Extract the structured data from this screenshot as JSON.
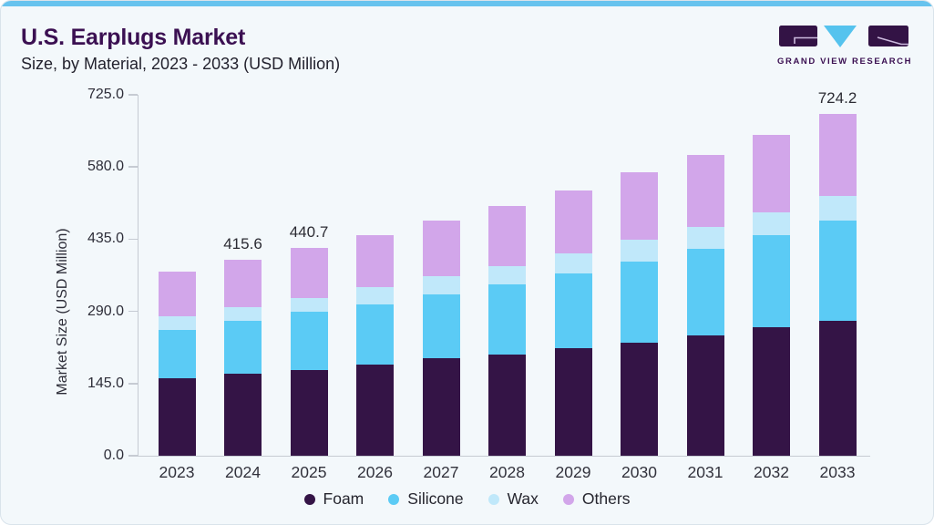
{
  "header": {
    "title": "U.S. Earplugs Market",
    "subtitle": "Size, by Material, 2023 - 2033 (USD Million)"
  },
  "logo": {
    "brand": "GRAND VIEW RESEARCH"
  },
  "colors": {
    "accent_bar": "#67c3ee",
    "card_background": "#f3f8fb",
    "title_text": "#3b1052",
    "axis_line": "#c6cbd3",
    "axis_text": "#2d2d38",
    "foam": "#341446",
    "silicone": "#5bcbf5",
    "wax": "#c0e8fa",
    "others": "#d2a6ea"
  },
  "chart_data": {
    "type": "bar",
    "stacked": true,
    "title": "U.S. Earplugs Market",
    "subtitle": "Size, by Material, 2023 - 2033 (USD Million)",
    "ylabel": "Market Size (USD Million)",
    "xlabel": "",
    "ylim": [
      0,
      725
    ],
    "yticks": [
      "0.0",
      "145.0",
      "290.0",
      "435.0",
      "580.0",
      "725.0"
    ],
    "grid": false,
    "legend_position": "bottom",
    "categories": [
      "2023",
      "2024",
      "2025",
      "2026",
      "2027",
      "2028",
      "2029",
      "2030",
      "2031",
      "2032",
      "2033"
    ],
    "series": [
      {
        "name": "Foam",
        "color": "#341446",
        "values": [
          164.0,
          173.0,
          181.7,
          192.4,
          207.1,
          214.2,
          228.3,
          239.3,
          255.3,
          271.6,
          286.8
        ]
      },
      {
        "name": "Silicone",
        "color": "#5bcbf5",
        "values": [
          102.9,
          113.0,
          123.1,
          128.5,
          134.0,
          149.2,
          157.1,
          172.3,
          183.4,
          196.1,
          211.7
        ]
      },
      {
        "name": "Wax",
        "color": "#c0e8fa",
        "values": [
          29.0,
          29.0,
          29.6,
          37.3,
          38.6,
          39.0,
          43.6,
          45.2,
          46.0,
          48.3,
          52.5
        ]
      },
      {
        "name": "Others",
        "color": "#d2a6ea",
        "values": [
          93.9,
          100.6,
          106.3,
          109.3,
          118.3,
          126.4,
          133.2,
          143.4,
          153.6,
          163.9,
          173.2
        ]
      }
    ],
    "totals": [
      389.8,
      415.6,
      440.7,
      467.5,
      498.0,
      528.8,
      562.2,
      600.2,
      638.3,
      679.9,
      724.2
    ],
    "total_labels": [
      "",
      "415.6",
      "440.7",
      "",
      "",
      "",
      "",
      "",
      "",
      "",
      "724.2"
    ]
  }
}
